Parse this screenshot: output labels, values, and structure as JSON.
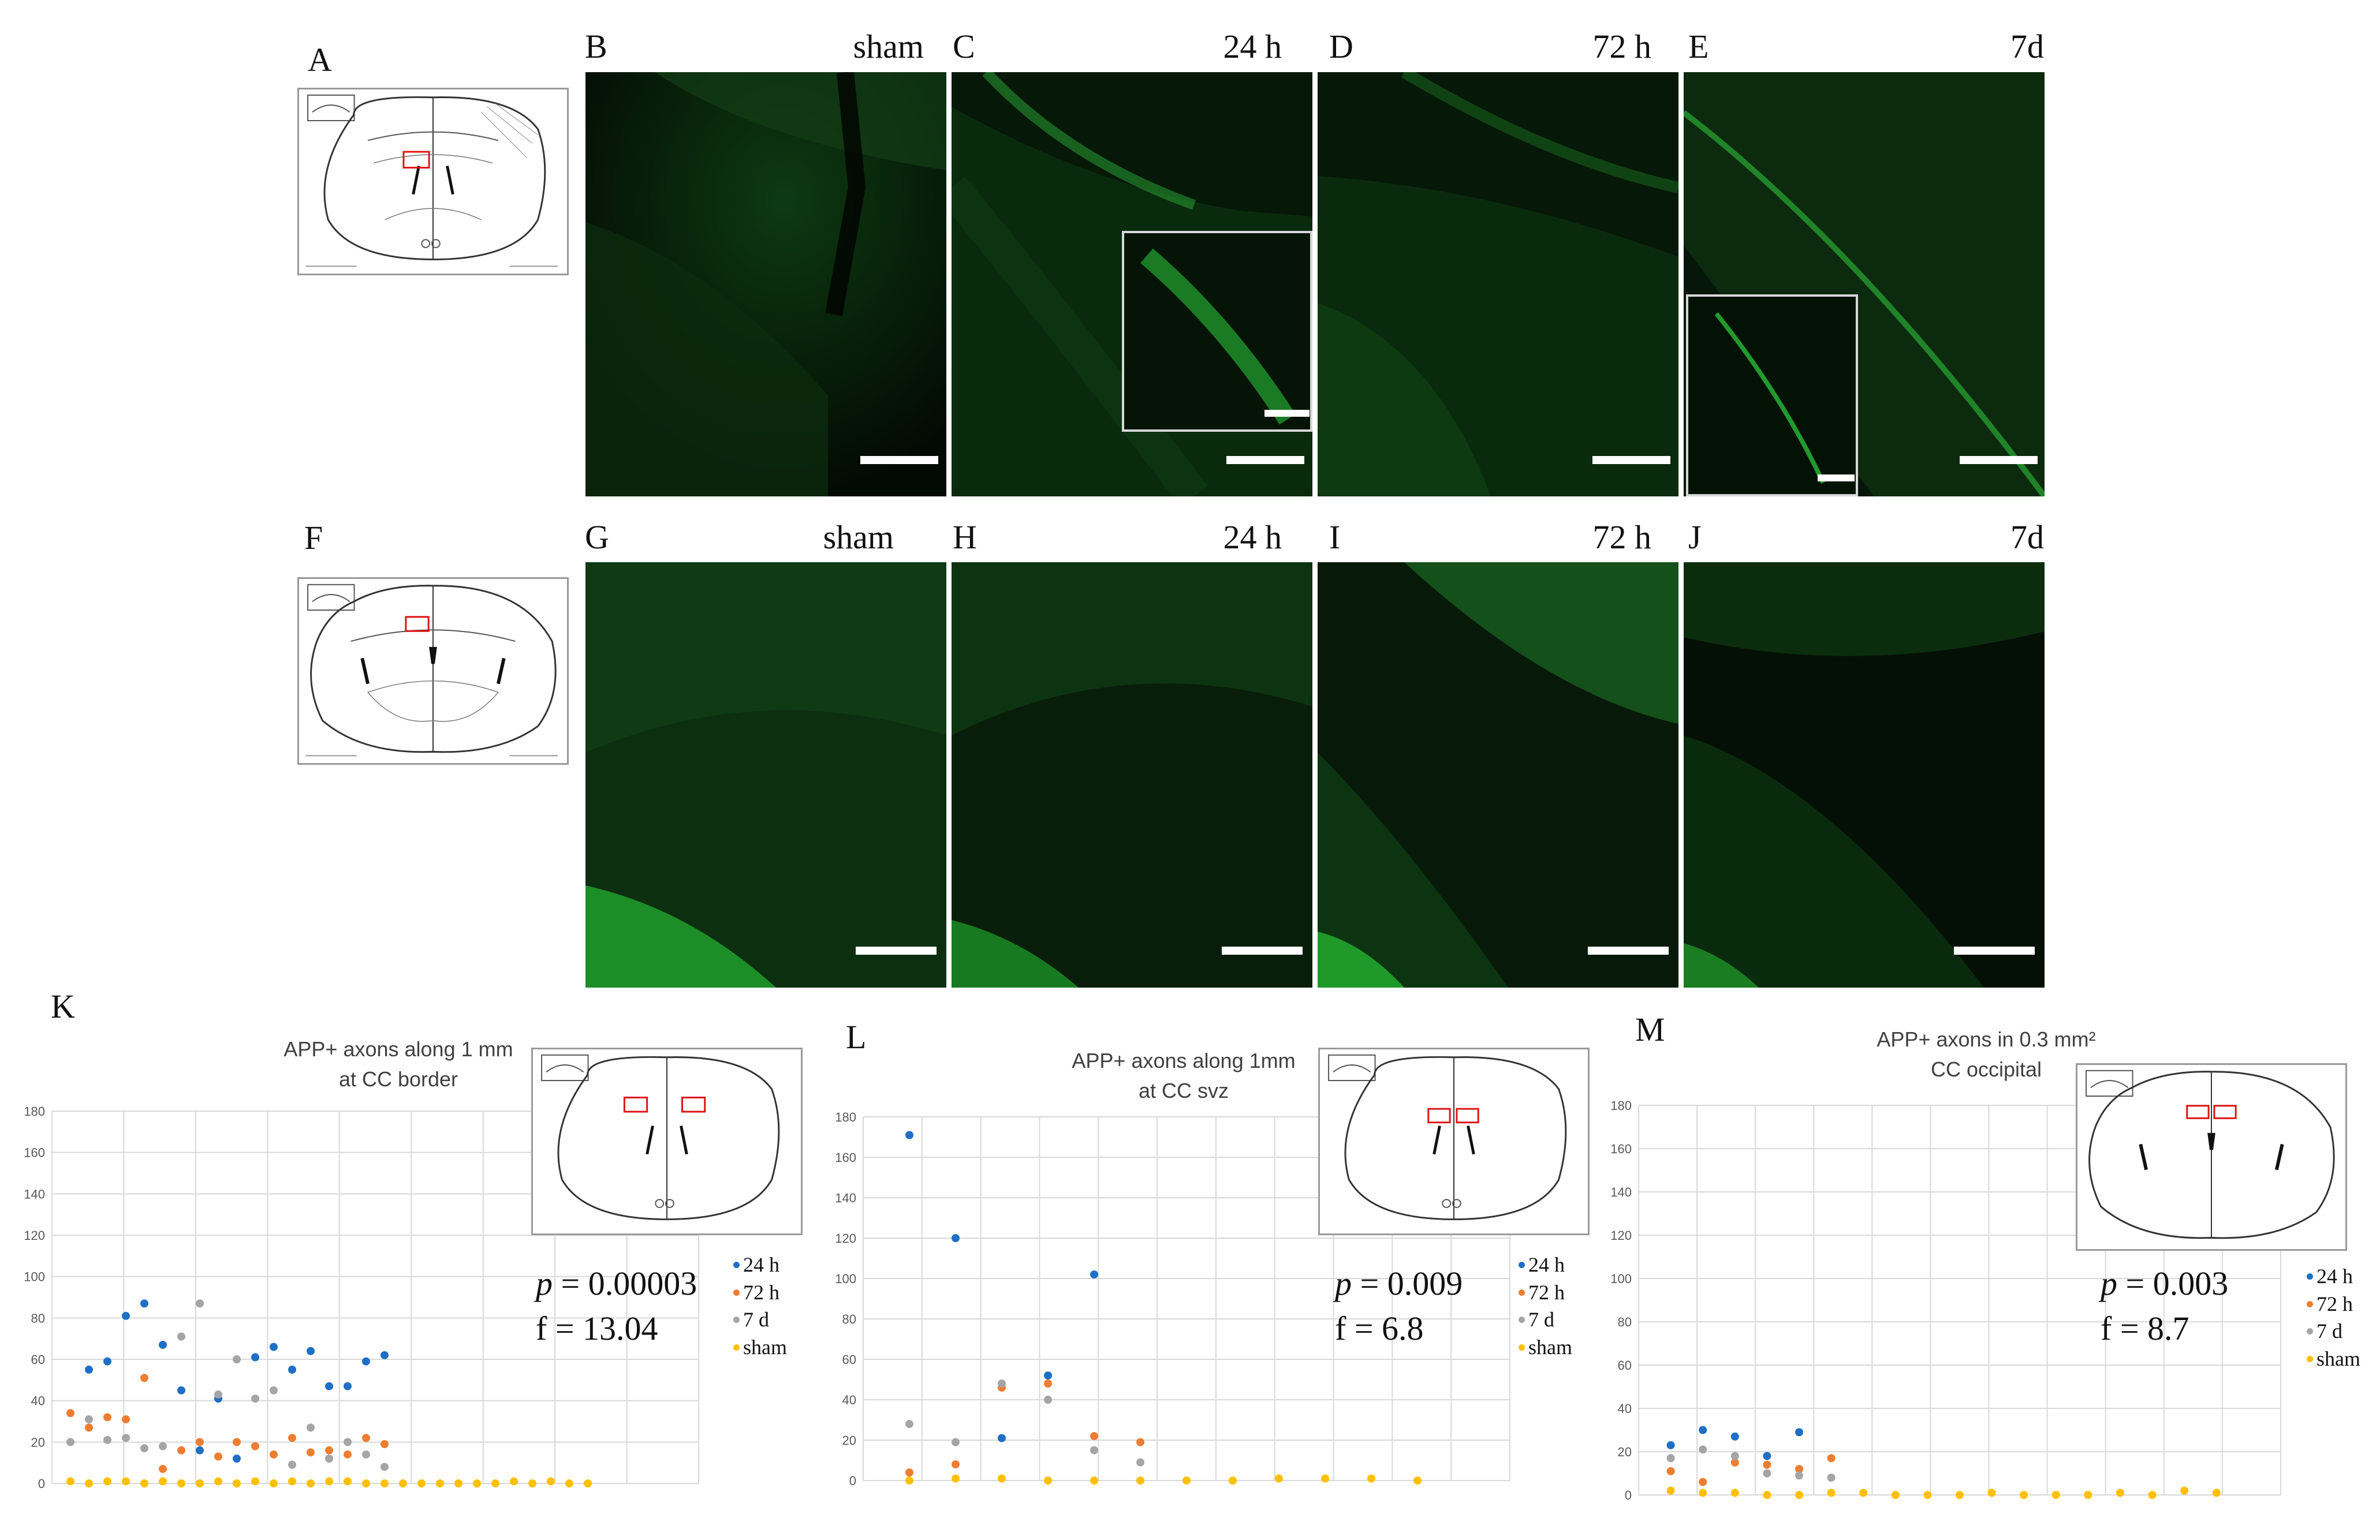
{
  "colors": {
    "h24": "#1f6fc4",
    "h72": "#ed7d31",
    "d7": "#a5a5a5",
    "sham": "#ffc000",
    "fluor": "#2bd63a"
  },
  "row1": {
    "atlas_letter": "A",
    "panels": [
      {
        "letter": "B",
        "label": "sham"
      },
      {
        "letter": "C",
        "label": "24 h"
      },
      {
        "letter": "D",
        "label": "72 h"
      },
      {
        "letter": "E",
        "label": "7d"
      }
    ]
  },
  "row2": {
    "atlas_letter": "F",
    "panels": [
      {
        "letter": "G",
        "label": "sham"
      },
      {
        "letter": "H",
        "label": "24 h"
      },
      {
        "letter": "I",
        "label": "72 h"
      },
      {
        "letter": "J",
        "label": "7d"
      }
    ]
  },
  "charts": {
    "K": {
      "letter": "K",
      "title_line1": "APP+ axons along 1 mm",
      "title_line2": "at CC border",
      "p_label": "p",
      "p_value": " = 0.00003",
      "f_text": "f = 13.04",
      "legend": [
        "24 h",
        "72 h",
        "7 d",
        "sham"
      ]
    },
    "L": {
      "letter": "L",
      "title_line1": "APP+ axons along 1mm",
      "title_line2": "at CC svz",
      "p_label": "p",
      "p_value": " = 0.009",
      "f_text": "f = 6.8",
      "legend": [
        "24 h",
        "72 h",
        "7 d",
        "sham"
      ]
    },
    "M": {
      "letter": "M",
      "title_line1": "APP+ axons in 0.3 mm²",
      "title_line2": "CC occipital",
      "p_label": "p",
      "p_value": " = 0.003",
      "f_text": "f = 8.7",
      "legend": [
        "24 h",
        "72 h",
        "7 d",
        "sham"
      ]
    }
  },
  "chart_data": [
    {
      "type": "scatter",
      "title": "APP+ axons along 1 mm at CC border",
      "xlabel": "",
      "ylabel": "",
      "ylim": [
        0,
        180
      ],
      "yticks": [
        0,
        20,
        40,
        60,
        80,
        100,
        120,
        140,
        160,
        180
      ],
      "xlim": [
        0,
        35
      ],
      "grid": true,
      "legend_position": "right",
      "series": [
        {
          "name": "24 h",
          "x": [
            2,
            3,
            4,
            5,
            6,
            7,
            8,
            9,
            10,
            11,
            12,
            13,
            14,
            15,
            16,
            17,
            18
          ],
          "y": [
            55,
            59,
            81,
            87,
            67,
            45,
            16,
            41,
            12,
            61,
            66,
            55,
            64,
            47,
            47,
            59,
            62
          ]
        },
        {
          "name": "72 h",
          "x": [
            1,
            2,
            3,
            4,
            5,
            6,
            7,
            8,
            9,
            10,
            11,
            12,
            13,
            14,
            15,
            16,
            17,
            18
          ],
          "y": [
            34,
            27,
            32,
            31,
            51,
            7,
            16,
            20,
            13,
            20,
            18,
            14,
            22,
            15,
            16,
            14,
            22,
            19
          ]
        },
        {
          "name": "7 d",
          "x": [
            1,
            2,
            3,
            4,
            5,
            6,
            7,
            8,
            9,
            10,
            11,
            12,
            13,
            14,
            15,
            16,
            17,
            18
          ],
          "y": [
            20,
            31,
            21,
            22,
            17,
            18,
            71,
            87,
            43,
            60,
            41,
            45,
            9,
            27,
            12,
            20,
            14,
            8
          ]
        },
        {
          "name": "sham",
          "x": [
            1,
            2,
            3,
            4,
            5,
            6,
            7,
            8,
            9,
            10,
            11,
            12,
            13,
            14,
            15,
            16,
            17,
            18,
            19,
            20,
            21,
            22,
            23,
            24,
            25,
            26,
            27,
            28,
            29
          ],
          "y": [
            1,
            0,
            1,
            1,
            0,
            1,
            0,
            0,
            1,
            0,
            1,
            0,
            1,
            0,
            1,
            1,
            0,
            0,
            0,
            0,
            0,
            0,
            0,
            0,
            1,
            0,
            1,
            0,
            0
          ]
        }
      ]
    },
    {
      "type": "scatter",
      "title": "APP+ axons along 1mm at CC svz",
      "xlabel": "",
      "ylabel": "",
      "ylim": [
        0,
        180
      ],
      "yticks": [
        0,
        20,
        40,
        60,
        80,
        100,
        120,
        140,
        160,
        180
      ],
      "xlim": [
        0,
        14
      ],
      "grid": true,
      "legend_position": "right",
      "series": [
        {
          "name": "24 h",
          "x": [
            1,
            2,
            3,
            4,
            5
          ],
          "y": [
            171,
            120,
            21,
            52,
            102
          ]
        },
        {
          "name": "72 h",
          "x": [
            1,
            2,
            3,
            4,
            5,
            6
          ],
          "y": [
            4,
            8,
            46,
            48,
            22,
            19
          ]
        },
        {
          "name": "7 d",
          "x": [
            1,
            2,
            3,
            4,
            5,
            6
          ],
          "y": [
            28,
            19,
            48,
            40,
            15,
            9
          ]
        },
        {
          "name": "sham",
          "x": [
            1,
            2,
            3,
            4,
            5,
            6,
            7,
            8,
            9,
            10,
            11,
            12
          ],
          "y": [
            0,
            1,
            1,
            0,
            0,
            0,
            0,
            0,
            1,
            1,
            1,
            0
          ]
        }
      ]
    },
    {
      "type": "scatter",
      "title": "APP+ axons in 0.3 mm² CC occipital",
      "xlabel": "",
      "ylabel": "",
      "ylim": [
        0,
        180
      ],
      "yticks": [
        0,
        20,
        40,
        60,
        80,
        100,
        120,
        140,
        160,
        180
      ],
      "xlim": [
        0,
        20
      ],
      "grid": true,
      "legend_position": "right",
      "series": [
        {
          "name": "24 h",
          "x": [
            1,
            2,
            3,
            4,
            5
          ],
          "y": [
            23,
            30,
            27,
            18,
            29
          ]
        },
        {
          "name": "72 h",
          "x": [
            1,
            2,
            3,
            4,
            5,
            6
          ],
          "y": [
            11,
            6,
            15,
            14,
            12,
            17
          ]
        },
        {
          "name": "7 d",
          "x": [
            1,
            2,
            3,
            4,
            5,
            6
          ],
          "y": [
            17,
            21,
            18,
            10,
            9,
            8
          ]
        },
        {
          "name": "sham",
          "x": [
            1,
            2,
            3,
            4,
            5,
            6,
            7,
            8,
            9,
            10,
            11,
            12,
            13,
            14,
            15,
            16,
            17,
            18
          ],
          "y": [
            2,
            1,
            1,
            0,
            0,
            1,
            1,
            0,
            0,
            0,
            1,
            0,
            0,
            0,
            1,
            0,
            2,
            1
          ]
        }
      ]
    }
  ]
}
